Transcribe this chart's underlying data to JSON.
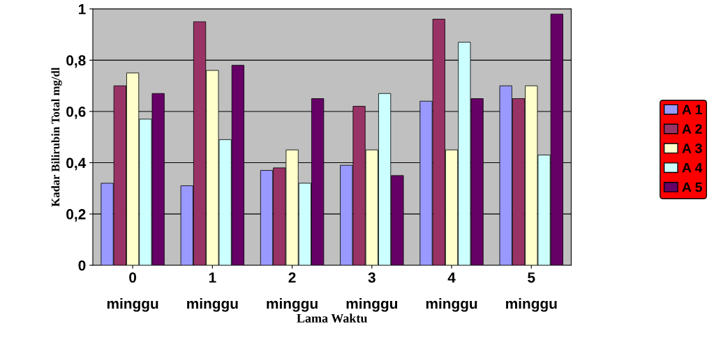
{
  "chart_data": {
    "type": "bar",
    "xlabel": "Lama Waktu",
    "ylabel": "Kadar Bilirubin Total mg/dl",
    "categories": [
      "0\nminggu",
      "1\nminggu",
      "2\nminggu",
      "3\nminggu",
      "4\nminggu",
      "5\nminggu"
    ],
    "series": [
      {
        "name": "A 1",
        "color": "#9999ff",
        "values": [
          0.32,
          0.31,
          0.37,
          0.39,
          0.64,
          0.7
        ]
      },
      {
        "name": "A 2",
        "color": "#993366",
        "values": [
          0.7,
          0.95,
          0.38,
          0.62,
          0.96,
          0.65
        ]
      },
      {
        "name": "A 3",
        "color": "#ffffcc",
        "values": [
          0.75,
          0.76,
          0.45,
          0.45,
          0.45,
          0.7
        ]
      },
      {
        "name": "A 4",
        "color": "#ccffff",
        "values": [
          0.57,
          0.49,
          0.32,
          0.67,
          0.87,
          0.43
        ]
      },
      {
        "name": "A 5",
        "color": "#660066",
        "values": [
          0.67,
          0.78,
          0.65,
          0.35,
          0.65,
          0.98
        ]
      }
    ],
    "ylim": [
      0,
      1
    ],
    "yticks": [
      0,
      {
        "value": 0.2,
        "label": "0,2"
      },
      {
        "value": 0.4,
        "label": "0,4"
      },
      {
        "value": 0.6,
        "label": "0,6"
      },
      {
        "value": 0.8,
        "label": "0,8"
      },
      1
    ],
    "grid": "y",
    "legend": "right"
  }
}
